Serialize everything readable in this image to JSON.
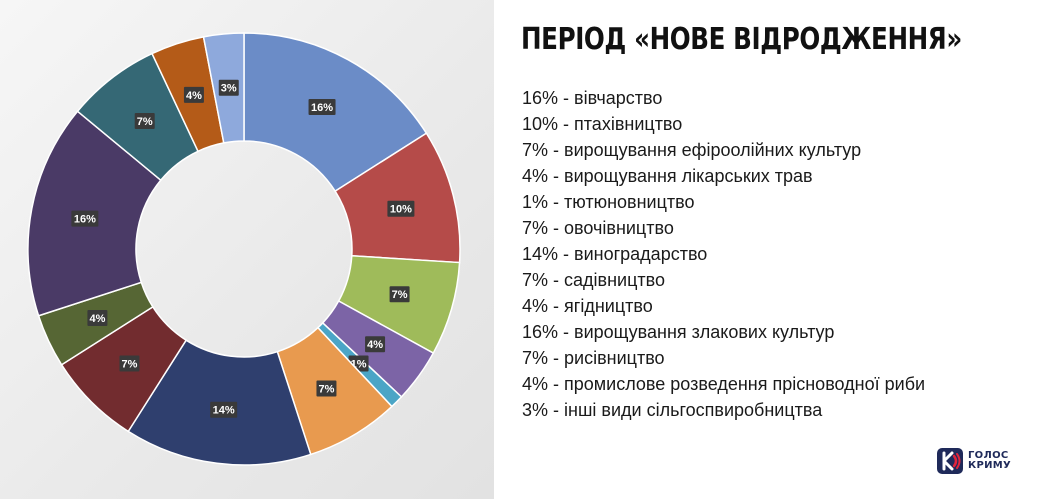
{
  "title": "ПЕРІОД «НОВЕ ВІДРОДЖЕННЯ»",
  "chart_data": {
    "type": "pie",
    "donut": true,
    "categories": [
      "вівчарство",
      "птахівництво",
      "вирощування ефіроолійних культур",
      "вирощування лікарських трав",
      "тютюновництво",
      "овочівництво",
      "виноградарство",
      "садівництво",
      "ягідництво",
      "вирощування злакових культур",
      "рисівництво",
      "промислове розведення прісноводної риби",
      "інші види сільгоспвиробництва"
    ],
    "values": [
      16,
      10,
      7,
      4,
      1,
      7,
      14,
      7,
      4,
      16,
      7,
      4,
      3
    ],
    "labels": [
      "16%",
      "10%",
      "7%",
      "4%",
      "1%",
      "7%",
      "14%",
      "7%",
      "4%",
      "16%",
      "7%",
      "4%",
      "3%"
    ],
    "colors": [
      "#6b8cc7",
      "#b54b49",
      "#9fbb5a",
      "#7c64a6",
      "#4ba5c6",
      "#e89a4f",
      "#2f3f6e",
      "#722c2f",
      "#566634",
      "#4a3a66",
      "#356875",
      "#b45b18",
      "#8ea9dc"
    ]
  },
  "legend": [
    "16% - вівчарство",
    "10% - птахівництво",
    "7% - вирощування ефіроолійних культур",
    "4% - вирощування лікарських трав",
    "1% - тютюновництво",
    "7% - овочівництво",
    "14% - виноградарство",
    "7% - садівництво",
    "4% - ягідництво",
    "16% - вирощування злакових культур",
    "7% - рисівництво",
    "4% - промислове розведення прісноводної риби",
    "3% - інші види сільгоспвиробництва"
  ],
  "logo": {
    "line1": "ГОЛОС",
    "line2": "КРИМУ",
    "colors": {
      "red": "#e0243c",
      "navy": "#1f2a5a"
    }
  }
}
